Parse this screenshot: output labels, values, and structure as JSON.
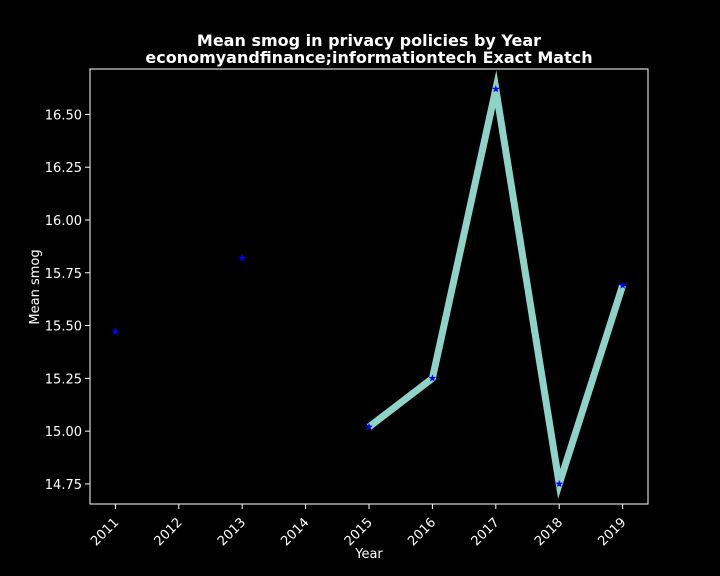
{
  "chart_data": {
    "type": "line",
    "title": "Mean smog in privacy policies by Year",
    "subtitle": "economyandfinance;informationtech Exact Match",
    "xlabel": "Year",
    "ylabel": "Mean smog",
    "x": [
      2011,
      2013,
      2015,
      2016,
      2017,
      2018,
      2019
    ],
    "y": [
      15.47,
      15.82,
      15.02,
      15.25,
      16.62,
      14.75,
      15.69
    ],
    "line_segment_years": [
      2015,
      2016,
      2017,
      2018,
      2019
    ],
    "x_ticks": [
      "2011",
      "2012",
      "2013",
      "2014",
      "2015",
      "2016",
      "2017",
      "2018",
      "2019"
    ],
    "y_ticks": [
      "14.75",
      "15.00",
      "15.25",
      "15.50",
      "15.75",
      "16.00",
      "16.25",
      "16.50"
    ],
    "xlim": [
      2010.6,
      2019.4
    ],
    "ylim": [
      14.655,
      16.715
    ],
    "grid": false,
    "marker": "star",
    "colors": {
      "background": "#000000",
      "line": "#8dd3c7",
      "marker": "#0000ff",
      "text": "#ffffff",
      "axes": "#ffffff"
    }
  }
}
